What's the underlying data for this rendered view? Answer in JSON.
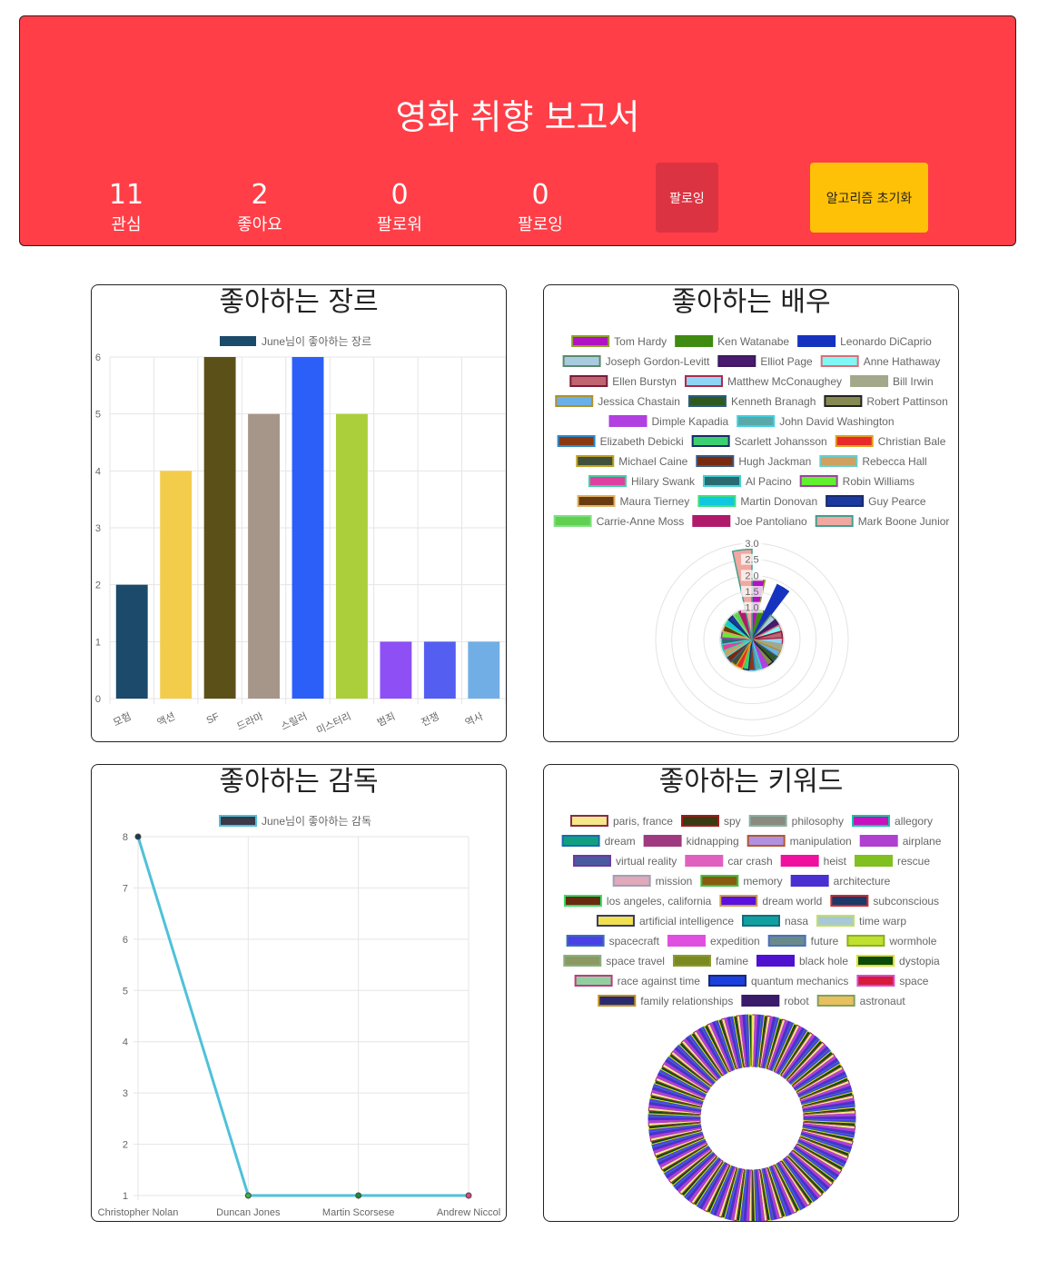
{
  "header": {
    "title": "영화 취향 보고서",
    "stats": [
      {
        "num": "11",
        "label": "관심"
      },
      {
        "num": "2",
        "label": "좋아요"
      },
      {
        "num": "0",
        "label": "팔로워"
      },
      {
        "num": "0",
        "label": "팔로잉"
      }
    ],
    "follow_button": "팔로잉",
    "reset_button": "알고리즘 초기화",
    "bg_color": "#ff3e47"
  },
  "panels": {
    "genre_title": "좋아하는 장르",
    "actor_title": "좋아하는 배우",
    "director_title": "좋아하는 감독",
    "keyword_title": "좋아하는 키워드"
  },
  "chart_data": [
    {
      "type": "bar",
      "title": "좋아하는 장르",
      "legend": "June님이 좋아하는 장르",
      "categories": [
        "모험",
        "액션",
        "SF",
        "드라마",
        "스릴러",
        "미스터리",
        "범죄",
        "전쟁",
        "역사"
      ],
      "values": [
        2,
        4,
        6,
        5,
        6,
        5,
        1,
        1,
        1
      ],
      "colors": [
        "#1b4a6b",
        "#f4cc4c",
        "#5c5019",
        "#a6968a",
        "#2b5ff7",
        "#abcf3a",
        "#8e4ff5",
        "#545ef0",
        "#72aee6"
      ],
      "ylim": [
        0,
        6
      ],
      "grid": true,
      "legend_position": "top"
    },
    {
      "type": "polarArea",
      "title": "좋아하는 배우",
      "rlim": [
        0,
        3
      ],
      "ticks": [
        "3.0",
        "2.5",
        "2.0",
        "1.5",
        "1.0"
      ],
      "series": [
        {
          "name": "Tom Hardy",
          "value": 2,
          "color": "#b012c4",
          "border": "#8fa028"
        },
        {
          "name": "Ken Watanabe",
          "value": 1,
          "color": "#3f8a10",
          "border": "#3f8a10"
        },
        {
          "name": "Leonardo DiCaprio",
          "value": 2,
          "color": "#1633c0",
          "border": "#1633c0"
        },
        {
          "name": "Joseph Gordon-Levitt",
          "value": 1,
          "color": "#a9cbe0",
          "border": "#5a8a6a"
        },
        {
          "name": "Elliot Page",
          "value": 1,
          "color": "#4a1a6e",
          "border": "#3a1a5e"
        },
        {
          "name": "Anne Hathaway",
          "value": 1,
          "color": "#80f7f4",
          "border": "#d7707a"
        },
        {
          "name": "Ellen Burstyn",
          "value": 1,
          "color": "#c06470",
          "border": "#7a1a3a"
        },
        {
          "name": "Matthew McConaughey",
          "value": 1,
          "color": "#8ed4f4",
          "border": "#b02a4a"
        },
        {
          "name": "Bill Irwin",
          "value": 1,
          "color": "#a4a88a",
          "border": "#a4a88a"
        },
        {
          "name": "Jessica Chastain",
          "value": 1,
          "color": "#6ab0e8",
          "border": "#b0902a"
        },
        {
          "name": "Kenneth Branagh",
          "value": 1,
          "color": "#2e5a20",
          "border": "#2e5a80"
        },
        {
          "name": "Robert Pattinson",
          "value": 1,
          "color": "#868a50",
          "border": "#222222"
        },
        {
          "name": "Dimple Kapadia",
          "value": 1,
          "color": "#b040e0",
          "border": "#b040e0"
        },
        {
          "name": "John David Washington",
          "value": 1,
          "color": "#5aa8a8",
          "border": "#40d0e0"
        },
        {
          "name": "Elizabeth Debicki",
          "value": 1,
          "color": "#8a3a10",
          "border": "#2a8ad0"
        },
        {
          "name": "Scarlett Johansson",
          "value": 1,
          "color": "#3ad070",
          "border": "#1a2a6a"
        },
        {
          "name": "Christian Bale",
          "value": 1,
          "color": "#e82a2a",
          "border": "#e0a020"
        },
        {
          "name": "Michael Caine",
          "value": 1,
          "color": "#40503a",
          "border": "#c0a020"
        },
        {
          "name": "Hugh Jackman",
          "value": 1,
          "color": "#7a2a10",
          "border": "#3a5a80"
        },
        {
          "name": "Rebecca Hall",
          "value": 1,
          "color": "#d0a060",
          "border": "#60d0d0"
        },
        {
          "name": "Hilary Swank",
          "value": 1,
          "color": "#e040a0",
          "border": "#40d0a0"
        },
        {
          "name": "Al Pacino",
          "value": 1,
          "color": "#2a6a70",
          "border": "#40d0d0"
        },
        {
          "name": "Robin Williams",
          "value": 1,
          "color": "#60f030",
          "border": "#a040a0"
        },
        {
          "name": "Maura Tierney",
          "value": 1,
          "color": "#6a3a10",
          "border": "#e0b060"
        },
        {
          "name": "Martin Donovan",
          "value": 1,
          "color": "#10c8e0",
          "border": "#40e080"
        },
        {
          "name": "Guy Pearce",
          "value": 1,
          "color": "#1a3aa0",
          "border": "#1a2a6a"
        },
        {
          "name": "Carrie-Anne Moss",
          "value": 1,
          "color": "#60d050",
          "border": "#80e080"
        },
        {
          "name": "Joe Pantoliano",
          "value": 1,
          "color": "#b01a6a",
          "border": "#b01a6a"
        },
        {
          "name": "Mark Boone Junior",
          "value": 3,
          "color": "#f0a8a0",
          "border": "#40a090"
        }
      ]
    },
    {
      "type": "line",
      "title": "좋아하는 감독",
      "legend": "June님이 좋아하는 감독",
      "categories": [
        "Christopher Nolan",
        "Duncan Jones",
        "Martin Scorsese",
        "Andrew Niccol"
      ],
      "values": [
        8,
        1,
        1,
        1
      ],
      "point_colors": [
        "#1b3a5a",
        "#3ab040",
        "#1a8a30",
        "#e04080"
      ],
      "line_color": "#4fc1d9",
      "ylim": [
        1,
        8
      ],
      "grid": true,
      "legend_position": "top"
    },
    {
      "type": "doughnut",
      "title": "좋아하는 키워드",
      "series": [
        {
          "name": "paris, france",
          "color": "#f4e88a",
          "border": "#8a2a4a"
        },
        {
          "name": "spy",
          "color": "#3a3a10",
          "border": "#a01a1a"
        },
        {
          "name": "philosophy",
          "color": "#8a8a80",
          "border": "#8ab0a0"
        },
        {
          "name": "allegory",
          "color": "#c810c0",
          "border": "#10c8a0"
        },
        {
          "name": "dream",
          "color": "#10a080",
          "border": "#1a6ab0"
        },
        {
          "name": "kidnapping",
          "color": "#a03a80",
          "border": "#a03a80"
        },
        {
          "name": "manipulation",
          "color": "#b090e0",
          "border": "#b05a30"
        },
        {
          "name": "airplane",
          "color": "#b040d0",
          "border": "#b040d0"
        },
        {
          "name": "virtual reality",
          "color": "#4a5aa0",
          "border": "#6a3aa0"
        },
        {
          "name": "car crash",
          "color": "#e060c0",
          "border": "#e060c0"
        },
        {
          "name": "heist",
          "color": "#f010a0",
          "border": "#f010a0"
        },
        {
          "name": "rescue",
          "color": "#80c020",
          "border": "#80c020"
        },
        {
          "name": "mission",
          "color": "#e0a8b8",
          "border": "#a0a0b8"
        },
        {
          "name": "memory",
          "color": "#8a5a10",
          "border": "#40c040"
        },
        {
          "name": "architecture",
          "color": "#4a30d0",
          "border": "#4a30d0"
        },
        {
          "name": "los angeles, california",
          "color": "#6a2a10",
          "border": "#30e060"
        },
        {
          "name": "dream world",
          "color": "#5a10e0",
          "border": "#d0a040"
        },
        {
          "name": "subconscious",
          "color": "#1a3a6a",
          "border": "#d02a2a"
        },
        {
          "name": "artificial intelligence",
          "color": "#f0e050",
          "border": "#3a3a6a"
        },
        {
          "name": "nasa",
          "color": "#10a0a0",
          "border": "#1a6a80"
        },
        {
          "name": "time warp",
          "color": "#a8c8d8",
          "border": "#c0e060"
        },
        {
          "name": "spacecraft",
          "color": "#4a40e8",
          "border": "#3a70b0"
        },
        {
          "name": "expedition",
          "color": "#e050e0",
          "border": "#e050e0"
        },
        {
          "name": "future",
          "color": "#6a8a8a",
          "border": "#4a70c0"
        },
        {
          "name": "wormhole",
          "color": "#c0e030",
          "border": "#8ab020"
        },
        {
          "name": "space travel",
          "color": "#8a9a60",
          "border": "#8ab080"
        },
        {
          "name": "famine",
          "color": "#7a8a20",
          "border": "#8a9a30"
        },
        {
          "name": "black hole",
          "color": "#5010d0",
          "border": "#5010d0"
        },
        {
          "name": "dystopia",
          "color": "#0a4a0a",
          "border": "#e0e020"
        },
        {
          "name": "race against time",
          "color": "#90d0a0",
          "border": "#c03a80"
        },
        {
          "name": "quantum mechanics",
          "color": "#1a40e0",
          "border": "#1a2a70"
        },
        {
          "name": "space",
          "color": "#d81a3a",
          "border": "#d050d0"
        },
        {
          "name": "family relationships",
          "color": "#2a2a70",
          "border": "#c09020"
        },
        {
          "name": "robot",
          "color": "#3a1a6a",
          "border": "#3a1a6a"
        },
        {
          "name": "astronaut",
          "color": "#e8c060",
          "border": "#80a060"
        }
      ]
    }
  ]
}
